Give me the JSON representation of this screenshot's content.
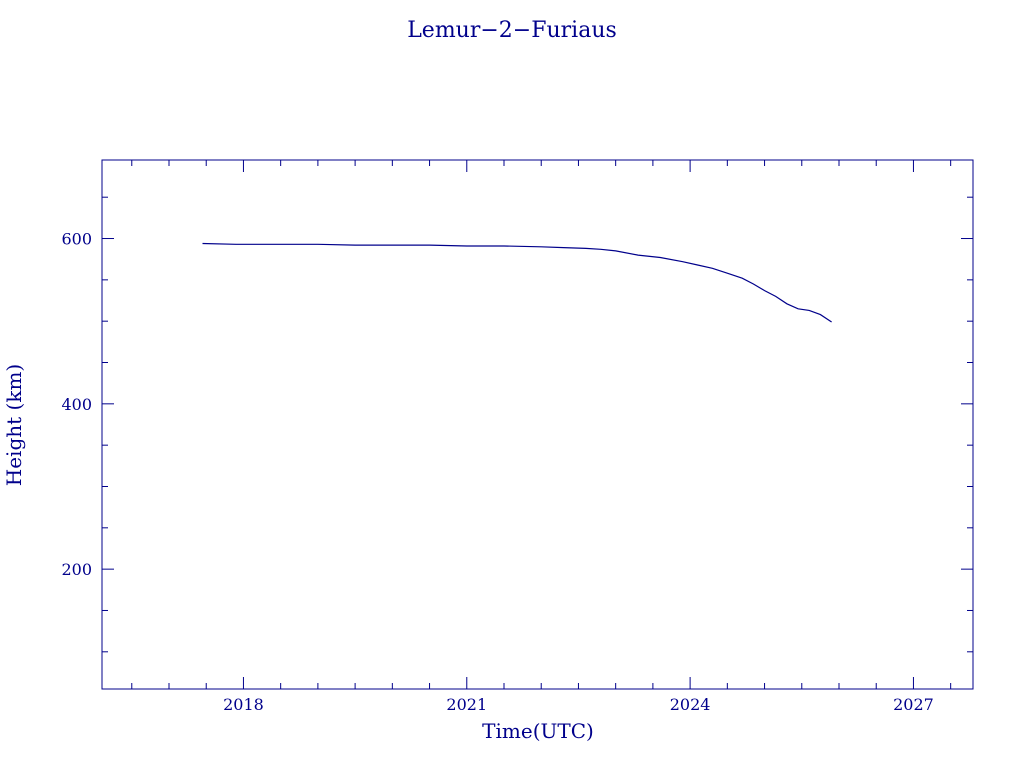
{
  "chart_data": {
    "type": "line",
    "title": "Lemur−2−Furiaus",
    "xlabel": "Time(UTC)",
    "ylabel": "Height (km)",
    "xlim": [
      2016.1,
      2027.8
    ],
    "ylim": [
      55,
      695
    ],
    "x_ticks": [
      2018,
      2021,
      2024,
      2027
    ],
    "x_tick_labels": [
      "2018",
      "2021",
      "2024",
      "2027"
    ],
    "y_ticks": [
      200,
      400,
      600
    ],
    "y_tick_labels": [
      "200",
      "400",
      "600"
    ],
    "grid": false,
    "color": "#00008b",
    "series": [
      {
        "x": [
          2017.45,
          2017.9,
          2018.5,
          2019.0,
          2019.5,
          2020.0,
          2020.5,
          2021.0,
          2021.5,
          2022.0,
          2022.3,
          2022.6,
          2022.8,
          2023.0,
          2023.3,
          2023.6,
          2023.9,
          2024.1,
          2024.3,
          2024.5,
          2024.7,
          2024.85,
          2025.0,
          2025.15,
          2025.3,
          2025.45,
          2025.6,
          2025.75,
          2025.9
        ],
        "y": [
          594,
          593,
          593,
          593,
          592,
          592,
          592,
          591,
          591,
          590,
          589,
          588,
          587,
          585,
          580,
          577,
          572,
          568,
          564,
          558,
          552,
          545,
          537,
          530,
          521,
          515,
          513,
          508,
          499
        ]
      }
    ]
  }
}
